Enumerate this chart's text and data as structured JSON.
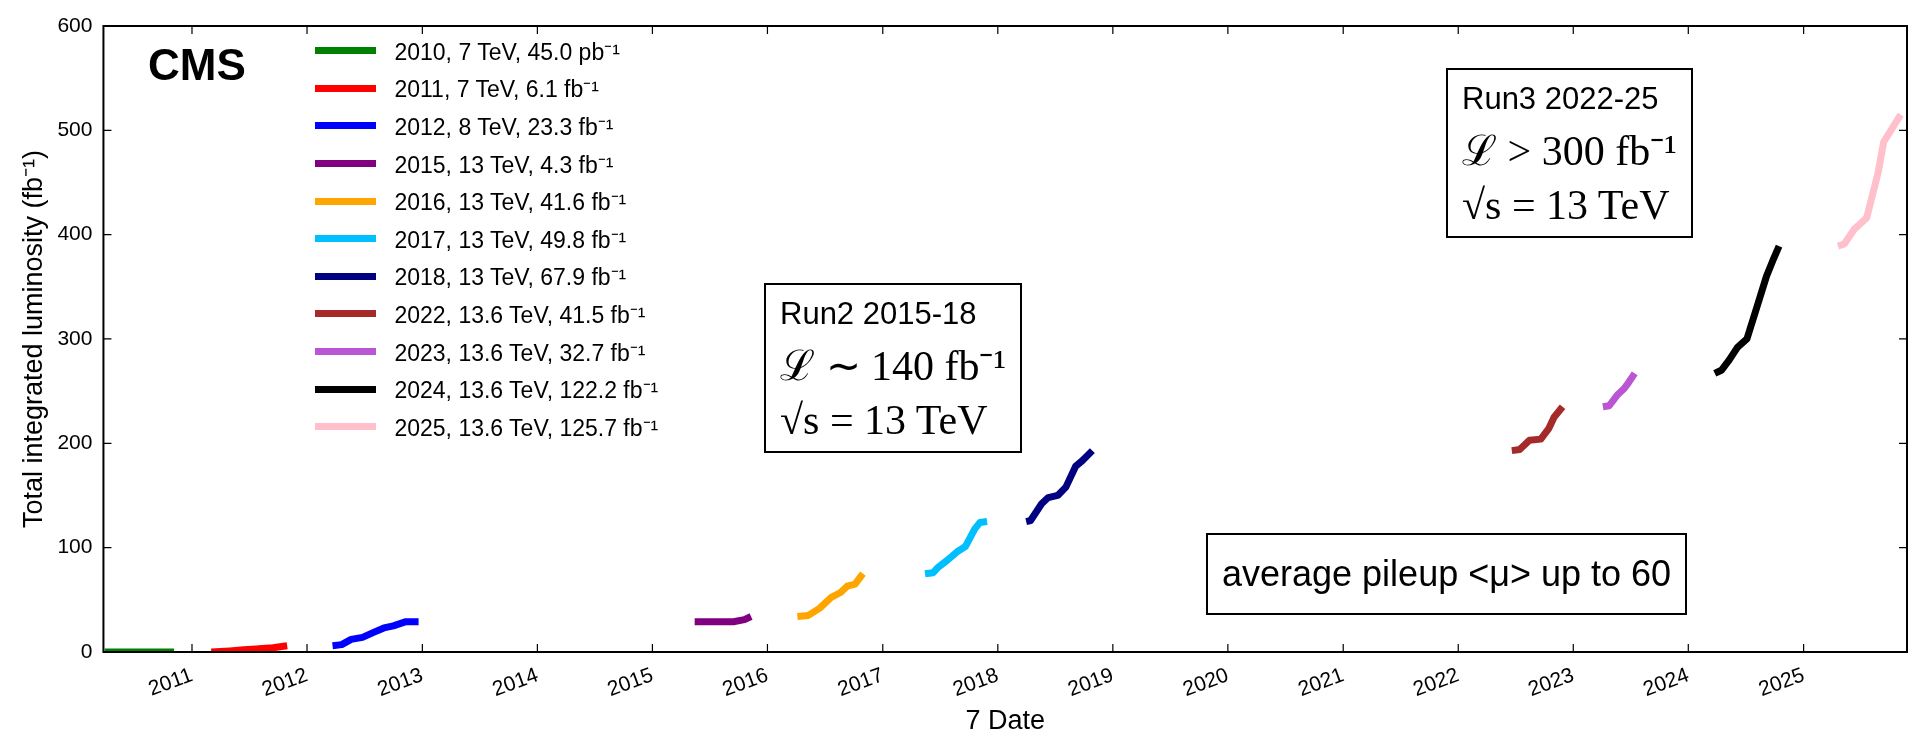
{
  "chart_data": {
    "type": "line",
    "xlabel": "7 Date",
    "ylabel": "Total integrated luminosity (fb⁻¹)",
    "xlim": [
      "2010-03-26",
      "2025-11-25"
    ],
    "xticks": [
      {
        "value": "2011-01-01",
        "label": "2011"
      },
      {
        "value": "2012-01-01",
        "label": "2012"
      },
      {
        "value": "2013-01-01",
        "label": "2013"
      },
      {
        "value": "2014-01-01",
        "label": "2014"
      },
      {
        "value": "2015-01-01",
        "label": "2015"
      },
      {
        "value": "2016-01-01",
        "label": "2016"
      },
      {
        "value": "2017-01-01",
        "label": "2017"
      },
      {
        "value": "2018-01-01",
        "label": "2018"
      },
      {
        "value": "2019-01-01",
        "label": "2019"
      },
      {
        "value": "2020-01-01",
        "label": "2020"
      },
      {
        "value": "2021-01-01",
        "label": "2021"
      },
      {
        "value": "2022-01-01",
        "label": "2022"
      },
      {
        "value": "2023-01-01",
        "label": "2023"
      },
      {
        "value": "2024-01-01",
        "label": "2024"
      },
      {
        "value": "2025-01-01",
        "label": "2025"
      }
    ],
    "ylim": [
      0,
      600
    ],
    "yticks": [
      0,
      100,
      200,
      300,
      400,
      500,
      600
    ],
    "grid": false,
    "legend": "top left",
    "annotations": [
      "CMS",
      "Run2 2015-18\nℒ ∼ 140 fb⁻¹\n√s = 13 TeV",
      "Run3 2022-25\nℒ > 300 fb⁻¹\n√s = 13 TeV",
      "average pileup <μ> up to 60"
    ],
    "series": [
      {
        "name": "2010, 7 TeV, 45.0 pb⁻¹",
        "color": "#008000",
        "x": [
          "2010-03-30",
          "2010-11-05"
        ],
        "values": [
          0,
          0
        ]
      },
      {
        "name": "2011, 7 TeV, 6.1 fb⁻¹",
        "color": "#ff0000",
        "x": [
          "2011-03-03",
          "2011-05-01",
          "2011-06-15",
          "2011-08-01",
          "2011-09-15",
          "2011-10-30"
        ],
        "values": [
          0,
          1,
          2,
          3,
          4,
          6
        ]
      },
      {
        "name": "2012, 8 TeV, 23.3 fb⁻¹",
        "color": "#0000ff",
        "x": [
          "2012-03-22",
          "2012-04-20",
          "2012-05-20",
          "2012-06-25",
          "2012-08-01",
          "2012-09-01",
          "2012-10-01",
          "2012-11-10",
          "2012-12-20"
        ],
        "values": [
          6,
          7,
          12,
          14,
          19,
          23,
          25,
          29,
          29
        ]
      },
      {
        "name": "2015, 13 TeV, 4.3 fb⁻¹",
        "color": "#800080",
        "x": [
          "2015-05-15",
          "2015-09-15",
          "2015-10-20",
          "2015-11-10"
        ],
        "values": [
          29,
          29,
          31,
          34
        ]
      },
      {
        "name": "2016, 13 TeV, 41.6 fb⁻¹",
        "color": "#ffa500",
        "x": [
          "2016-04-05",
          "2016-05-10",
          "2016-06-15",
          "2016-07-20",
          "2016-08-20",
          "2016-09-10",
          "2016-10-05",
          "2016-10-30"
        ],
        "values": [
          34,
          35,
          42,
          52,
          57,
          63,
          65,
          75
        ]
      },
      {
        "name": "2017, 13 TeV, 49.8 fb⁻¹",
        "color": "#00bfff",
        "x": [
          "2017-05-15",
          "2017-06-10",
          "2017-06-25",
          "2017-07-25",
          "2017-08-25",
          "2017-09-20",
          "2017-10-20",
          "2017-11-05",
          "2017-11-28"
        ],
        "values": [
          75,
          76,
          81,
          88,
          96,
          101,
          118,
          124,
          125
        ]
      },
      {
        "name": "2018, 13 TeV, 67.9 fb⁻¹",
        "color": "#000080",
        "x": [
          "2018-04-01",
          "2018-04-15",
          "2018-05-20",
          "2018-06-10",
          "2018-07-10",
          "2018-08-05",
          "2018-09-05",
          "2018-09-25",
          "2018-10-28"
        ],
        "values": [
          125,
          126,
          142,
          148,
          150,
          158,
          178,
          183,
          193
        ]
      },
      {
        "name": "2022, 13.6 TeV, 41.5 fb⁻¹",
        "color": "#a52a2a",
        "x": [
          "2022-06-20",
          "2022-07-15",
          "2022-08-15",
          "2022-09-20",
          "2022-10-15",
          "2022-11-01",
          "2022-11-28"
        ],
        "values": [
          193,
          194,
          203,
          204,
          214,
          225,
          235
        ]
      },
      {
        "name": "2023, 13.6 TeV, 32.7 fb⁻¹",
        "color": "#ba55d3",
        "x": [
          "2023-04-05",
          "2023-04-25",
          "2023-05-20",
          "2023-06-10",
          "2023-06-25",
          "2023-07-15"
        ],
        "values": [
          235,
          236,
          246,
          252,
          258,
          267
        ]
      },
      {
        "name": "2024, 13.6 TeV, 122.2 fb⁻¹",
        "color": "#000000",
        "x": [
          "2024-03-25",
          "2024-04-15",
          "2024-05-10",
          "2024-06-05",
          "2024-07-05",
          "2024-08-05",
          "2024-09-05",
          "2024-09-25",
          "2024-10-15"
        ],
        "values": [
          267,
          270,
          280,
          292,
          300,
          330,
          360,
          375,
          389
        ]
      },
      {
        "name": "2025, 13.6 TeV, 125.7 fb⁻¹",
        "color": "#ffc0cb",
        "x": [
          "2025-04-20",
          "2025-05-10",
          "2025-06-10",
          "2025-07-20",
          "2025-08-25",
          "2025-09-12",
          "2025-10-05",
          "2025-11-05"
        ],
        "values": [
          389,
          391,
          405,
          416,
          459,
          489,
          500,
          515
        ]
      }
    ]
  }
}
